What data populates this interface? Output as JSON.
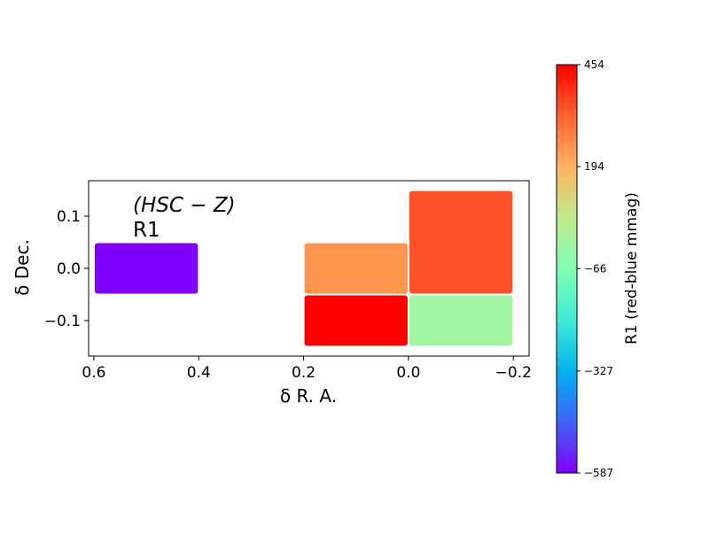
{
  "chart_data": {
    "type": "heatmap",
    "xlabel": "δ R. A.",
    "ylabel": "δ Dec.",
    "annotation": {
      "filter": "(HSC − Z)",
      "label": "R1"
    },
    "xlim": [
      0.61,
      -0.23
    ],
    "ylim": [
      -0.168,
      0.168
    ],
    "xticks": [
      {
        "value": 0.6,
        "label": "0.6"
      },
      {
        "value": 0.4,
        "label": "0.4"
      },
      {
        "value": 0.2,
        "label": "0.2"
      },
      {
        "value": 0.0,
        "label": "0.0"
      },
      {
        "value": -0.2,
        "label": "−0.2"
      }
    ],
    "yticks": [
      {
        "value": 0.1,
        "label": "0.1"
      },
      {
        "value": 0.0,
        "label": "0.0"
      },
      {
        "value": -0.1,
        "label": "−0.1"
      }
    ],
    "cells": [
      {
        "x0": 0.6,
        "x1": 0.4,
        "y0": -0.05,
        "y1": 0.05,
        "value": -587
      },
      {
        "x0": 0.2,
        "x1": 0.0,
        "y0": -0.05,
        "y1": 0.05,
        "value": 240
      },
      {
        "x0": 0.2,
        "x1": 0.0,
        "y0": -0.15,
        "y1": -0.05,
        "value": 454
      },
      {
        "x0": 0.0,
        "x1": -0.2,
        "y0": -0.05,
        "y1": 0.15,
        "value": 345
      },
      {
        "x0": 0.0,
        "x1": -0.2,
        "y0": -0.15,
        "y1": -0.05,
        "value": 0
      }
    ],
    "colorbar": {
      "label": "R1 (red-blue mmag)",
      "colormap": "rainbow",
      "min": -587,
      "max": 454,
      "ticks": [
        {
          "value": 454,
          "label": "454"
        },
        {
          "value": 194,
          "label": "194"
        },
        {
          "value": -66,
          "label": "−66"
        },
        {
          "value": -327,
          "label": "−327"
        },
        {
          "value": -587,
          "label": "−587"
        }
      ]
    }
  }
}
